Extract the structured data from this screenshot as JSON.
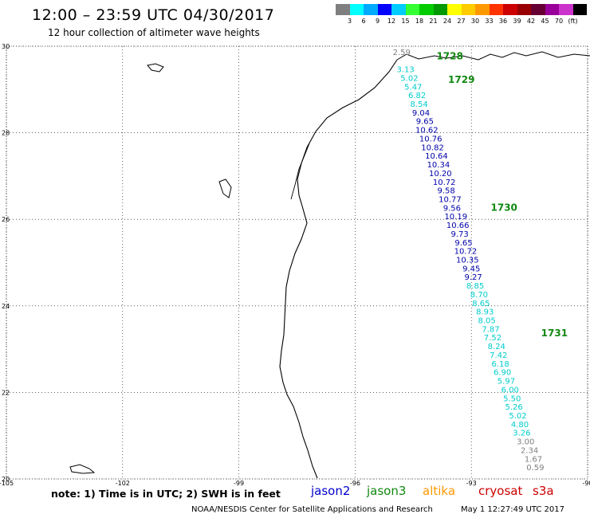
{
  "header": {
    "title": "12:00 – 23:59 UTC 04/30/2017",
    "subtitle": "12 hour collection of altimeter wave heights"
  },
  "colorbar": {
    "colors": [
      "#7f7f7f",
      "#00ffff",
      "#00aaff",
      "#0000ff",
      "#00ccff",
      "#33ff33",
      "#00cc00",
      "#009900",
      "#ffff00",
      "#ffcc00",
      "#ff9900",
      "#ff3300",
      "#cc0000",
      "#990000",
      "#660033",
      "#990099",
      "#cc33cc",
      "#000000"
    ],
    "labels": [
      "3",
      "6",
      "9",
      "12",
      "15",
      "18",
      "21",
      "24",
      "27",
      "30",
      "33",
      "36",
      "39",
      "42",
      "45",
      "70",
      "(ft)"
    ]
  },
  "axes": {
    "lat_ticks": [
      "30",
      "28",
      "26",
      "24",
      "22",
      "20"
    ],
    "lon_ticks": [
      "-105",
      "-102",
      "-99",
      "-96",
      "-93",
      "-90"
    ],
    "lat_range": [
      20,
      30
    ],
    "lon_range": [
      -105,
      -90
    ]
  },
  "orbits": [
    {
      "label": "1728",
      "lon": -93.9,
      "lat": 29.7
    },
    {
      "label": "1729",
      "lon": -93.6,
      "lat": 29.15
    },
    {
      "label": "1730",
      "lon": -92.5,
      "lat": 26.2
    },
    {
      "label": "1731",
      "lon": -91.2,
      "lat": 23.3
    }
  ],
  "swh_colors": {
    "gray": "#7f7f7f",
    "cyan": "#00cccc",
    "blue": "#0000aa"
  },
  "measurements": [
    {
      "v": "2.59",
      "lon": -94.8,
      "lat": 29.8,
      "c": "gray"
    },
    {
      "v": "3.13",
      "lon": -94.7,
      "lat": 29.4,
      "c": "cyan"
    },
    {
      "v": "5.02",
      "lon": -94.6,
      "lat": 29.2,
      "c": "cyan"
    },
    {
      "v": "5.47",
      "lon": -94.5,
      "lat": 29.0,
      "c": "cyan"
    },
    {
      "v": "6.82",
      "lon": -94.4,
      "lat": 28.8,
      "c": "cyan"
    },
    {
      "v": "8.54",
      "lon": -94.35,
      "lat": 28.6,
      "c": "cyan"
    },
    {
      "v": "9.04",
      "lon": -94.3,
      "lat": 28.4,
      "c": "blue"
    },
    {
      "v": "9.65",
      "lon": -94.2,
      "lat": 28.2,
      "c": "blue"
    },
    {
      "v": "10.62",
      "lon": -94.15,
      "lat": 28.0,
      "c": "blue"
    },
    {
      "v": "10.76",
      "lon": -94.05,
      "lat": 27.8,
      "c": "blue"
    },
    {
      "v": "10.82",
      "lon": -94.0,
      "lat": 27.6,
      "c": "blue"
    },
    {
      "v": "10.64",
      "lon": -93.9,
      "lat": 27.4,
      "c": "blue"
    },
    {
      "v": "10.34",
      "lon": -93.85,
      "lat": 27.2,
      "c": "blue"
    },
    {
      "v": "10.20",
      "lon": -93.8,
      "lat": 27.0,
      "c": "blue"
    },
    {
      "v": "10.72",
      "lon": -93.7,
      "lat": 26.8,
      "c": "blue"
    },
    {
      "v": "9.58",
      "lon": -93.65,
      "lat": 26.6,
      "c": "blue"
    },
    {
      "v": "10.77",
      "lon": -93.55,
      "lat": 26.4,
      "c": "blue"
    },
    {
      "v": "9.56",
      "lon": -93.5,
      "lat": 26.2,
      "c": "blue"
    },
    {
      "v": "10.19",
      "lon": -93.4,
      "lat": 26.0,
      "c": "blue"
    },
    {
      "v": "10.66",
      "lon": -93.35,
      "lat": 25.8,
      "c": "blue"
    },
    {
      "v": "9.73",
      "lon": -93.3,
      "lat": 25.6,
      "c": "blue"
    },
    {
      "v": "9.65",
      "lon": -93.2,
      "lat": 25.4,
      "c": "blue"
    },
    {
      "v": "10.72",
      "lon": -93.15,
      "lat": 25.2,
      "c": "blue"
    },
    {
      "v": "10.35",
      "lon": -93.1,
      "lat": 25.0,
      "c": "blue"
    },
    {
      "v": "9.45",
      "lon": -93.0,
      "lat": 24.8,
      "c": "blue"
    },
    {
      "v": "9.27",
      "lon": -92.95,
      "lat": 24.6,
      "c": "blue"
    },
    {
      "v": "8.85",
      "lon": -92.9,
      "lat": 24.4,
      "c": "cyan"
    },
    {
      "v": "8.70",
      "lon": -92.8,
      "lat": 24.2,
      "c": "cyan"
    },
    {
      "v": "8.65",
      "lon": -92.75,
      "lat": 24.0,
      "c": "cyan"
    },
    {
      "v": "8.93",
      "lon": -92.65,
      "lat": 23.8,
      "c": "cyan"
    },
    {
      "v": "8.05",
      "lon": -92.6,
      "lat": 23.6,
      "c": "cyan"
    },
    {
      "v": "7.87",
      "lon": -92.5,
      "lat": 23.4,
      "c": "cyan"
    },
    {
      "v": "7.52",
      "lon": -92.45,
      "lat": 23.2,
      "c": "cyan"
    },
    {
      "v": "8.24",
      "lon": -92.35,
      "lat": 23.0,
      "c": "cyan"
    },
    {
      "v": "7.42",
      "lon": -92.3,
      "lat": 22.8,
      "c": "cyan"
    },
    {
      "v": "6.18",
      "lon": -92.25,
      "lat": 22.6,
      "c": "cyan"
    },
    {
      "v": "6.90",
      "lon": -92.2,
      "lat": 22.4,
      "c": "cyan"
    },
    {
      "v": "5.97",
      "lon": -92.1,
      "lat": 22.2,
      "c": "cyan"
    },
    {
      "v": "6.00",
      "lon": -92.0,
      "lat": 22.0,
      "c": "cyan"
    },
    {
      "v": "5.50",
      "lon": -91.95,
      "lat": 21.8,
      "c": "cyan"
    },
    {
      "v": "5.26",
      "lon": -91.9,
      "lat": 21.6,
      "c": "cyan"
    },
    {
      "v": "5.02",
      "lon": -91.8,
      "lat": 21.4,
      "c": "cyan"
    },
    {
      "v": "4.80",
      "lon": -91.75,
      "lat": 21.2,
      "c": "cyan"
    },
    {
      "v": "3.26",
      "lon": -91.7,
      "lat": 21.0,
      "c": "cyan"
    },
    {
      "v": "3.00",
      "lon": -91.6,
      "lat": 20.8,
      "c": "gray"
    },
    {
      "v": "2.34",
      "lon": -91.5,
      "lat": 20.6,
      "c": "gray"
    },
    {
      "v": "1.67",
      "lon": -91.4,
      "lat": 20.4,
      "c": "gray"
    },
    {
      "v": "0.59",
      "lon": -91.35,
      "lat": 20.2,
      "c": "gray"
    }
  ],
  "footer": {
    "note": "note:  1) Time is in UTC;  2) SWH is in feet",
    "legend": [
      {
        "name": "jason2",
        "color": "#0000cc"
      },
      {
        "name": "jason3",
        "color": "#118811"
      },
      {
        "name": "altika",
        "color": "#ff9900"
      },
      {
        "name": "cryosat",
        "color": "#cc0000"
      },
      {
        "name": "s3a",
        "color": "#cc0000"
      }
    ],
    "credit": "NOAA/NESDIS Center for Satellite Applications and Research",
    "timestamp": "May  1 12:27:49 UTC 2017"
  }
}
